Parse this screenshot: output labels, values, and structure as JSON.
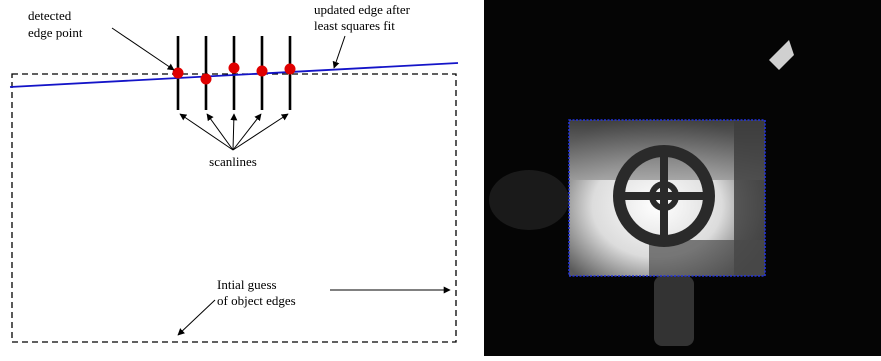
{
  "diagram": {
    "labels": {
      "detected_line1": "detected",
      "detected_line2": "edge point",
      "updated_line1": "updated edge after",
      "updated_line2": "least squares fit",
      "scanlines": "scanlines",
      "initial_line1": "Intial guess",
      "initial_line2": "of object edges"
    },
    "colors": {
      "fitted_edge": "#1414c8",
      "edge_point": "#e00000",
      "guess_box": "#000000",
      "scanline": "#000000"
    }
  },
  "photo": {
    "colors": {
      "background": "#050505",
      "detected_outline": "#2233dd",
      "object_bright": "#f2f2f2"
    }
  }
}
